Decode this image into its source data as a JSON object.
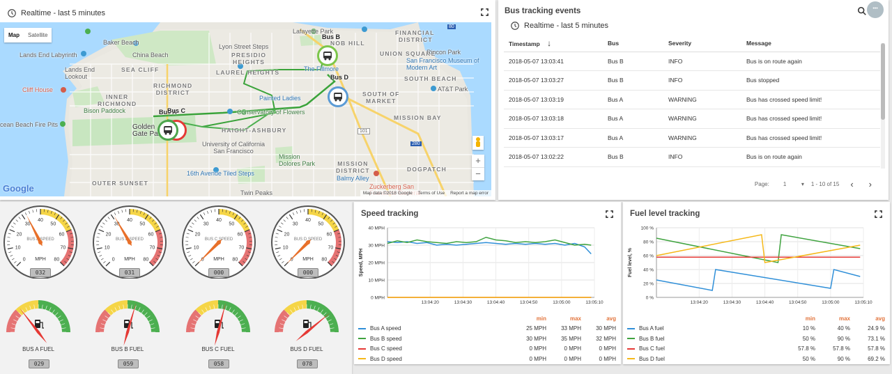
{
  "map": {
    "timewindow": "Realtime - last 5 minutes",
    "type_map": "Map",
    "type_satellite": "Satellite",
    "zoom_in": "+",
    "zoom_out": "−",
    "google": "Google",
    "attribution": [
      "Map data ©2018 Google",
      "Terms of Use",
      "Report a map error"
    ],
    "labels": {
      "lafayette_park": "Lafayette Park",
      "baker_beach": "Baker Beach",
      "lyon_steps": "Lyon Street Steps",
      "presidio": "PRESIDIO",
      "heights": "HEIGHTS",
      "nob_hill": "NOB HILL",
      "union_square": "UNION SQUARE",
      "financial": "FINANCIAL",
      "district_fin": "DISTRICT",
      "lands_end": "Lands End Labyrinth",
      "china_beach": "China Beach",
      "rincon": "Rincon Park",
      "sfmoma": "San Francisco Museum of Modern Art",
      "lands_end_lookout": "Lands End\nLookout",
      "sea_cliff": "SEA CLIFF",
      "laurel": "LAUREL HEIGHTS",
      "fillmore": "The Fillmore",
      "south_beach": "SOUTH BEACH",
      "cliff_house": "Cliff House",
      "richmond": "RICHMOND\nDISTRICT",
      "painted_ladies": "Painted Ladies",
      "att_park": "AT&T Park",
      "inner_richmond": "INNER\nRICHMOND",
      "south_of_market": "SOUTH OF\nMARKET",
      "bison": "Bison Paddock",
      "conservatory": "Conservatory of Flowers",
      "mission_bay": "MISSION BAY",
      "ocean_beach": "cean Beach Fire Pits",
      "golden_gate": "Golden\nGate Park",
      "haight": "HAIGHT-ASHBURY",
      "ucsf": "University of California\nSan Francisco",
      "mission_dolores": "Mission\nDolores Park",
      "mission_district": "MISSION\nDISTRICT",
      "dogpatch": "DOGPATCH",
      "tiled_steps": "16th Avenue Tiled Steps",
      "balmy": "Balmy Alley",
      "outer_sunset": "OUTER SUNSET",
      "twin_peaks": "Twin Peaks",
      "zuckerberg": "Zuckerberg San\nFrancisco General",
      "hwy101": "101",
      "hwy280": "280",
      "hwy80": "80"
    },
    "buses": [
      {
        "label": "Bus B",
        "color": "#7cc64b"
      },
      {
        "label": "Bus D",
        "color": "#5b9bd5"
      },
      {
        "label": "Bus A",
        "color": "#4ca54c"
      },
      {
        "label": "Bus C",
        "color": "#e53935"
      }
    ]
  },
  "events": {
    "title": "Bus tracking events",
    "timewindow": "Realtime - last 5 minutes",
    "columns": [
      "Timestamp",
      "Bus",
      "Severity",
      "Message"
    ],
    "rows": [
      {
        "ts": "2018-05-07 13:03:41",
        "bus": "Bus B",
        "sev": "INFO",
        "msg": "Bus is on route again"
      },
      {
        "ts": "2018-05-07 13:03:27",
        "bus": "Bus B",
        "sev": "INFO",
        "msg": "Bus stopped"
      },
      {
        "ts": "2018-05-07 13:03:19",
        "bus": "Bus A",
        "sev": "WARNING",
        "msg": "Bus has crossed speed limit!"
      },
      {
        "ts": "2018-05-07 13:03:18",
        "bus": "Bus A",
        "sev": "WARNING",
        "msg": "Bus has crossed speed limit!"
      },
      {
        "ts": "2018-05-07 13:03:17",
        "bus": "Bus A",
        "sev": "WARNING",
        "msg": "Bus has crossed speed limit!"
      },
      {
        "ts": "2018-05-07 13:02:22",
        "bus": "Bus B",
        "sev": "INFO",
        "msg": "Bus is on route again"
      }
    ],
    "page_label": "Page:",
    "page_value": "1",
    "range": "1 - 10 of 15",
    "more": "•••"
  },
  "gauges": {
    "speed": [
      {
        "label": "BUS A SPEED",
        "unit": "MPH",
        "value": 32,
        "display": "032"
      },
      {
        "label": "BUS B SPEED",
        "unit": "MPH",
        "value": 31,
        "display": "031"
      },
      {
        "label": "BUS C SPEED",
        "unit": "MPH",
        "value": 0,
        "display": "000"
      },
      {
        "label": "BUS D SPEED",
        "unit": "MPH",
        "value": 0,
        "display": "000"
      }
    ],
    "speed_ticks": [
      "0",
      "10",
      "20",
      "30",
      "40",
      "50",
      "60",
      "70",
      "80"
    ],
    "fuel": [
      {
        "label": "BUS A FUEL",
        "value": 29,
        "display": "029"
      },
      {
        "label": "BUS B FUEL",
        "value": 59,
        "display": "059"
      },
      {
        "label": "BUS C FUEL",
        "value": 58,
        "display": "058"
      },
      {
        "label": "BUS D FUEL",
        "value": 78,
        "display": "078"
      }
    ]
  },
  "speed_chart": {
    "title": "Speed tracking",
    "legend_headers": [
      "min",
      "max",
      "avg"
    ],
    "legend": [
      {
        "name": "Bus A speed",
        "color": "#2f8fd8",
        "min": "25 MPH",
        "max": "33 MPH",
        "avg": "30 MPH"
      },
      {
        "name": "Bus B speed",
        "color": "#3fa33f",
        "min": "30 MPH",
        "max": "35 MPH",
        "avg": "32 MPH"
      },
      {
        "name": "Bus C speed",
        "color": "#e53935",
        "min": "0 MPH",
        "max": "0 MPH",
        "avg": "0 MPH"
      },
      {
        "name": "Bus D speed",
        "color": "#f5b818",
        "min": "0 MPH",
        "max": "0 MPH",
        "avg": "0 MPH"
      }
    ]
  },
  "fuel_chart": {
    "title": "Fuel level tracking",
    "legend_headers": [
      "min",
      "max",
      "avg"
    ],
    "legend": [
      {
        "name": "Bus A fuel",
        "color": "#2f8fd8",
        "min": "10 %",
        "max": "40 %",
        "avg": "24.9 %"
      },
      {
        "name": "Bus B fuel",
        "color": "#3fa33f",
        "min": "50 %",
        "max": "90 %",
        "avg": "73.1 %"
      },
      {
        "name": "Bus C fuel",
        "color": "#e53935",
        "min": "57.8 %",
        "max": "57.8 %",
        "avg": "57.8 %"
      },
      {
        "name": "Bus D fuel",
        "color": "#f5b818",
        "min": "50 %",
        "max": "90 %",
        "avg": "69.2 %"
      }
    ]
  },
  "chart_data": [
    {
      "type": "line",
      "ylabel": "Speed, MPH",
      "ylim": [
        0,
        40
      ],
      "y_ticks": [
        "0 MPH",
        "10 MPH",
        "20 MPH",
        "30 MPH",
        "40 MPH"
      ],
      "x_ticks": [
        "13:04:20",
        "13:04:30",
        "13:04:40",
        "13:04:50",
        "13:05:00",
        "13:05:10"
      ],
      "xlim": [
        "13:04:07",
        "13:05:10"
      ],
      "series": [
        {
          "name": "Bus A speed",
          "x": [
            "13:04:07",
            "13:04:10",
            "13:04:13",
            "13:04:16",
            "13:04:19",
            "13:04:22",
            "13:04:25",
            "13:04:28",
            "13:04:31",
            "13:04:34",
            "13:04:37",
            "13:04:40",
            "13:04:43",
            "13:04:46",
            "13:04:49",
            "13:04:52",
            "13:04:55",
            "13:04:58",
            "13:05:01",
            "13:05:04",
            "13:05:07",
            "13:05:09"
          ],
          "values": [
            32,
            31.5,
            32,
            31,
            31.5,
            30,
            30.5,
            30,
            30.5,
            31,
            31.5,
            31,
            30.5,
            31,
            30.5,
            31,
            30.5,
            31,
            30,
            31,
            29,
            25
          ]
        },
        {
          "name": "Bus B speed",
          "x": [
            "13:04:07",
            "13:04:10",
            "13:04:13",
            "13:04:16",
            "13:04:19",
            "13:04:22",
            "13:04:25",
            "13:04:28",
            "13:04:31",
            "13:04:34",
            "13:04:37",
            "13:04:40",
            "13:04:43",
            "13:04:46",
            "13:04:49",
            "13:04:52",
            "13:04:55",
            "13:04:58",
            "13:05:01",
            "13:05:04",
            "13:05:07",
            "13:05:09"
          ],
          "values": [
            31,
            32.5,
            31.5,
            33,
            32,
            31.5,
            31,
            32,
            31.5,
            32,
            34.5,
            33,
            32.5,
            31.5,
            32,
            31.5,
            32,
            33,
            31.5,
            30,
            30.5,
            30
          ]
        },
        {
          "name": "Bus C speed",
          "x": [
            "13:04:07",
            "13:05:09"
          ],
          "values": [
            0,
            0
          ]
        },
        {
          "name": "Bus D speed",
          "x": [
            "13:04:07",
            "13:05:09"
          ],
          "values": [
            0,
            0
          ]
        }
      ]
    },
    {
      "type": "line",
      "ylabel": "Fuel level, %",
      "ylim": [
        0,
        100
      ],
      "y_ticks": [
        "0 %",
        "20 %",
        "40 %",
        "60 %",
        "80 %",
        "100 %"
      ],
      "x_ticks": [
        "13:04:20",
        "13:04:30",
        "13:04:40",
        "13:04:50",
        "13:05:00",
        "13:05:10"
      ],
      "xlim": [
        "13:04:07",
        "13:05:10"
      ],
      "series": [
        {
          "name": "Bus A fuel",
          "x": [
            "13:04:07",
            "13:04:24",
            "13:04:25",
            "13:05:00",
            "13:05:01",
            "13:05:09"
          ],
          "values": [
            25,
            10,
            40,
            13,
            40,
            30
          ]
        },
        {
          "name": "Bus B fuel",
          "x": [
            "13:04:07",
            "13:04:44",
            "13:04:45",
            "13:05:09"
          ],
          "values": [
            85,
            50,
            90,
            70
          ]
        },
        {
          "name": "Bus C fuel",
          "x": [
            "13:04:07",
            "13:05:09"
          ],
          "values": [
            57.8,
            57.8
          ]
        },
        {
          "name": "Bus D fuel",
          "x": [
            "13:04:07",
            "13:04:39",
            "13:04:40",
            "13:05:09"
          ],
          "values": [
            60,
            90,
            50,
            75
          ]
        }
      ]
    }
  ]
}
